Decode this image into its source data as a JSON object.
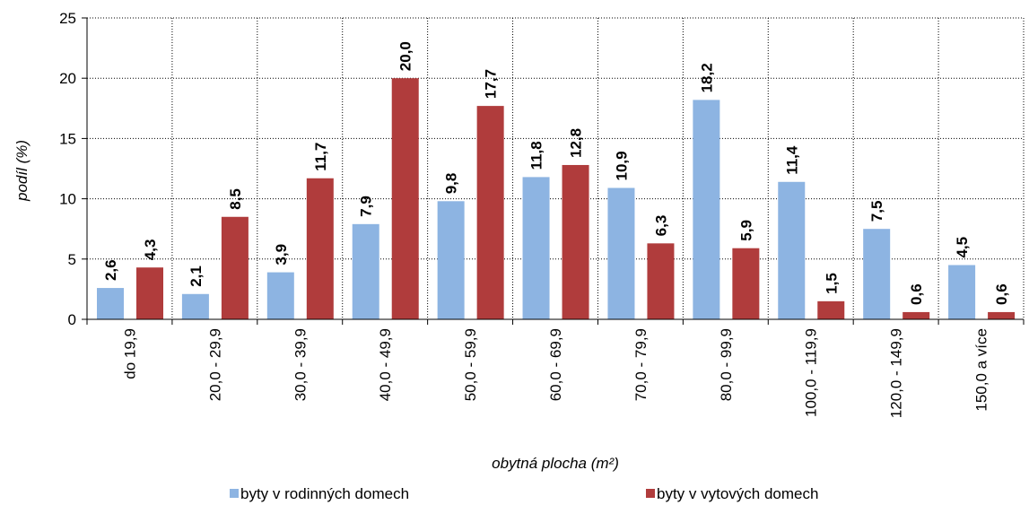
{
  "chart_data": {
    "type": "bar",
    "categories": [
      "do 19,9",
      "20,0 - 29,9",
      "30,0 - 39,9",
      "40,0 - 49,9",
      "50,0 - 59,9",
      "60,0 - 69,9",
      "70,0 - 79,9",
      "80,0 - 99,9",
      "100,0 - 119,9",
      "120,0 - 149,9",
      "150,0 a více"
    ],
    "series": [
      {
        "name": "byty v rodinných domech",
        "color": "#8db4e2",
        "values": [
          2.6,
          2.1,
          3.9,
          7.9,
          9.8,
          11.8,
          10.9,
          18.2,
          11.4,
          7.5,
          4.5
        ],
        "value_labels": [
          "2,6",
          "2,1",
          "3,9",
          "7,9",
          "9,8",
          "11,8",
          "10,9",
          "18,2",
          "11,4",
          "7,5",
          "4,5"
        ]
      },
      {
        "name": "byty v vytových domech",
        "color": "#b03c3c",
        "values": [
          4.3,
          8.5,
          11.7,
          20.0,
          17.7,
          12.8,
          6.3,
          5.9,
          1.5,
          0.6,
          0.6
        ],
        "value_labels": [
          "4,3",
          "8,5",
          "11,7",
          "20,0",
          "17,7",
          "12,8",
          "6,3",
          "5,9",
          "1,5",
          "0,6",
          "0,6"
        ]
      }
    ],
    "xlabel": "obytná plocha  (m²)",
    "ylabel": "podíl (%)",
    "ylim": [
      0,
      25
    ],
    "yticks": [
      0,
      5,
      10,
      15,
      20,
      25
    ],
    "grid": true,
    "legend": "bottom"
  }
}
